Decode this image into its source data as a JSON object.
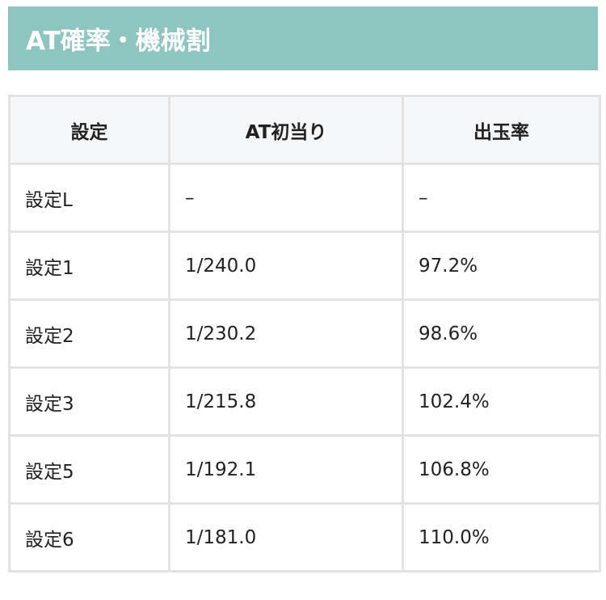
{
  "title": "AT確率・機械割",
  "table": {
    "headers": [
      "設定",
      "AT初当り",
      "出玉率"
    ],
    "rows": [
      [
        "設定L",
        "–",
        "–"
      ],
      [
        "設定1",
        "1/240.0",
        "97.2%"
      ],
      [
        "設定2",
        "1/230.2",
        "98.6%"
      ],
      [
        "設定3",
        "1/215.8",
        "102.4%"
      ],
      [
        "設定5",
        "1/192.1",
        "106.8%"
      ],
      [
        "設定6",
        "1/181.0",
        "110.0%"
      ]
    ]
  },
  "colors": {
    "title_bg": "#8fc5c1",
    "header_bg": "#f6f7f8",
    "border": "#e3e3e3"
  }
}
